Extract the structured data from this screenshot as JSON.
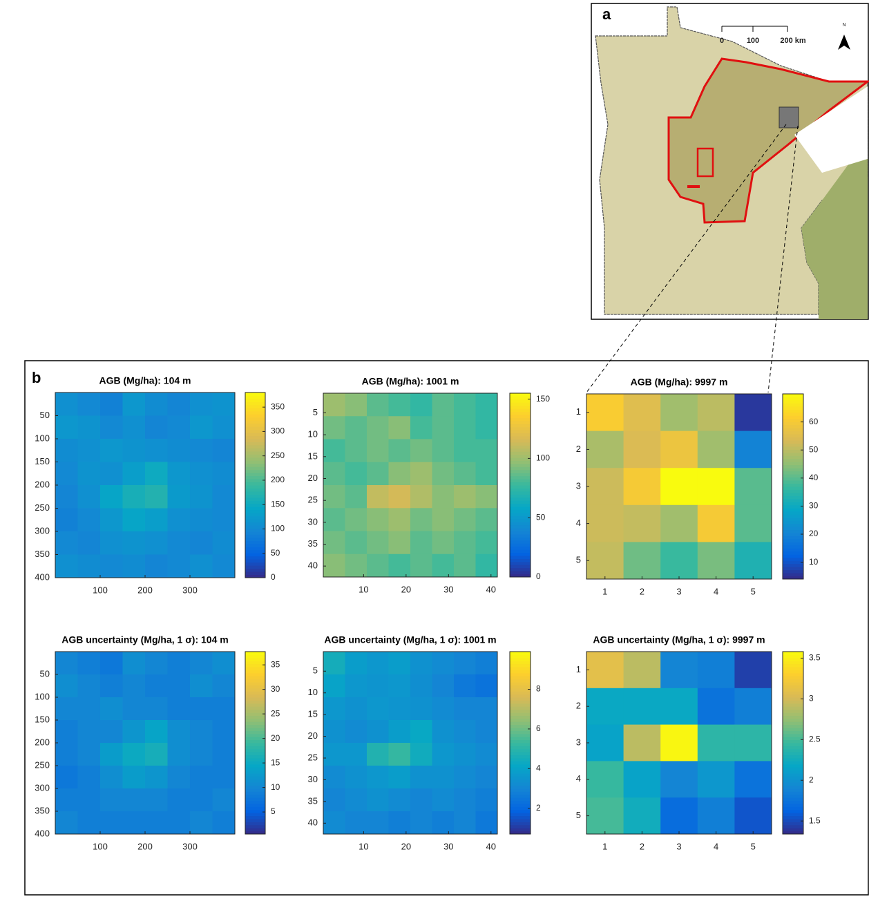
{
  "map": {
    "label": "a",
    "scale_ticks": [
      "0",
      "100",
      "200 km"
    ],
    "north": "N"
  },
  "panel_b_label": "b",
  "chart_data": [
    {
      "type": "heatmap",
      "title": "AGB (Mg/ha): 104 m",
      "colormap": "parula",
      "y_reversed": true,
      "xlim": [
        0,
        400
      ],
      "xticks": [
        100,
        200,
        300
      ],
      "ylim": [
        0,
        400
      ],
      "yticks": [
        50,
        100,
        150,
        200,
        250,
        300,
        350,
        400
      ],
      "clim": [
        0,
        380
      ],
      "cticks": [
        0,
        50,
        100,
        150,
        200,
        250,
        300,
        350
      ],
      "z": [
        [
          110,
          100,
          90,
          120,
          105,
          95,
          110,
          115
        ],
        [
          120,
          115,
          100,
          110,
          95,
          100,
          120,
          110
        ],
        [
          105,
          110,
          120,
          115,
          110,
          105,
          100,
          95
        ],
        [
          100,
          115,
          110,
          130,
          150,
          120,
          110,
          105
        ],
        [
          95,
          110,
          140,
          160,
          170,
          125,
          115,
          100
        ],
        [
          90,
          100,
          120,
          140,
          130,
          110,
          105,
          100
        ],
        [
          100,
          95,
          110,
          115,
          110,
          100,
          95,
          105
        ],
        [
          110,
          105,
          100,
          105,
          95,
          100,
          110,
          100
        ]
      ]
    },
    {
      "type": "heatmap",
      "title": "AGB (Mg/ha): 1001 m",
      "colormap": "parula",
      "y_reversed": true,
      "xlim": [
        0.5,
        41.5
      ],
      "xticks": [
        10,
        20,
        30,
        40
      ],
      "ylim": [
        0.5,
        42.5
      ],
      "yticks": [
        5,
        10,
        15,
        20,
        25,
        30,
        35,
        40
      ],
      "clim": [
        0,
        155
      ],
      "cticks": [
        0,
        50,
        100,
        150
      ],
      "z": [
        [
          100,
          95,
          85,
          80,
          75,
          85,
          80,
          75
        ],
        [
          90,
          85,
          90,
          95,
          80,
          85,
          80,
          75
        ],
        [
          80,
          85,
          90,
          85,
          90,
          85,
          80,
          80
        ],
        [
          85,
          80,
          85,
          95,
          100,
          90,
          85,
          80
        ],
        [
          90,
          85,
          110,
          115,
          105,
          95,
          100,
          95
        ],
        [
          85,
          90,
          95,
          100,
          90,
          95,
          90,
          85
        ],
        [
          90,
          85,
          90,
          95,
          85,
          90,
          85,
          80
        ],
        [
          95,
          90,
          85,
          80,
          85,
          80,
          85,
          75
        ]
      ]
    },
    {
      "type": "heatmap",
      "title": "AGB (Mg/ha): 9997 m",
      "colormap": "parula",
      "y_reversed": true,
      "xlim": [
        0.5,
        5.5
      ],
      "xticks": [
        1,
        2,
        3,
        4,
        5
      ],
      "ylim": [
        0.5,
        5.5
      ],
      "yticks": [
        1,
        2,
        3,
        4,
        5
      ],
      "clim": [
        4,
        70
      ],
      "cticks": [
        10,
        20,
        30,
        40,
        50,
        60
      ],
      "z": [
        [
          61,
          55,
          47,
          50,
          6
        ],
        [
          48,
          54,
          58,
          47,
          20
        ],
        [
          52,
          60,
          70,
          70,
          40
        ],
        [
          52,
          51,
          47,
          60,
          40
        ],
        [
          51,
          42,
          37,
          43,
          33
        ]
      ]
    },
    {
      "type": "heatmap",
      "title": "AGB uncertainty (Mg/ha, 1 σ): 104 m",
      "colormap": "parula",
      "y_reversed": true,
      "xlim": [
        0,
        400
      ],
      "xticks": [
        100,
        200,
        300
      ],
      "ylim": [
        0,
        400
      ],
      "yticks": [
        50,
        100,
        150,
        200,
        250,
        300,
        350,
        400
      ],
      "clim": [
        0.5,
        37.7
      ],
      "cticks": [
        5,
        10,
        15,
        20,
        25,
        30,
        35
      ],
      "z": [
        [
          10,
          9,
          8,
          11,
          10,
          9,
          10,
          11
        ],
        [
          11,
          10,
          9,
          10,
          9,
          9,
          11,
          10
        ],
        [
          10,
          10,
          11,
          10,
          10,
          9,
          9,
          9
        ],
        [
          9,
          10,
          10,
          12,
          14,
          11,
          10,
          9
        ],
        [
          9,
          10,
          13,
          15,
          16,
          11,
          10,
          9
        ],
        [
          8,
          9,
          11,
          13,
          12,
          10,
          9,
          9
        ],
        [
          9,
          9,
          10,
          10,
          10,
          9,
          9,
          10
        ],
        [
          10,
          9,
          9,
          9,
          9,
          9,
          10,
          9
        ]
      ]
    },
    {
      "type": "heatmap",
      "title": "AGB uncertainty (Mg/ha, 1 σ): 1001 m",
      "colormap": "parula",
      "y_reversed": true,
      "xlim": [
        0.5,
        41.5
      ],
      "xticks": [
        10,
        20,
        30,
        40
      ],
      "ylim": [
        0.5,
        42.5
      ],
      "yticks": [
        5,
        10,
        15,
        20,
        25,
        30,
        35,
        40
      ],
      "clim": [
        0.7,
        9.9
      ],
      "cticks": [
        2,
        4,
        6,
        8
      ],
      "z": [
        [
          4.5,
          3.8,
          3.6,
          3.8,
          3.4,
          3.2,
          3.0,
          2.8
        ],
        [
          4.0,
          3.6,
          3.5,
          3.6,
          3.3,
          3.0,
          2.6,
          2.4
        ],
        [
          3.6,
          3.4,
          3.6,
          3.5,
          3.4,
          3.2,
          3.0,
          3.0
        ],
        [
          3.4,
          3.2,
          3.4,
          3.8,
          4.2,
          3.4,
          3.2,
          3.0
        ],
        [
          3.6,
          3.6,
          4.8,
          5.2,
          4.4,
          3.6,
          3.4,
          3.2
        ],
        [
          3.2,
          3.4,
          3.6,
          3.8,
          3.4,
          3.4,
          3.2,
          3.0
        ],
        [
          3.0,
          3.2,
          3.4,
          3.2,
          3.0,
          3.2,
          3.0,
          2.8
        ],
        [
          3.2,
          3.0,
          3.0,
          2.8,
          3.0,
          2.8,
          3.0,
          2.6
        ]
      ]
    },
    {
      "type": "heatmap",
      "title": "AGB uncertainty (Mg/ha, 1 σ): 9997 m",
      "colormap": "parula",
      "y_reversed": true,
      "xlim": [
        0.5,
        5.5
      ],
      "xticks": [
        1,
        2,
        3,
        4,
        5
      ],
      "ylim": [
        0.5,
        5.5
      ],
      "yticks": [
        1,
        2,
        3,
        4,
        5
      ],
      "clim": [
        1.34,
        3.58
      ],
      "cticks": [
        1.5,
        2,
        2.5,
        3,
        3.5
      ],
      "z": [
        [
          3.1,
          2.9,
          1.9,
          1.85,
          1.45
        ],
        [
          2.2,
          2.2,
          2.2,
          1.75,
          1.85
        ],
        [
          2.15,
          2.9,
          3.55,
          2.4,
          2.4
        ],
        [
          2.45,
          2.15,
          1.9,
          2.05,
          1.75
        ],
        [
          2.5,
          2.25,
          1.7,
          1.85,
          1.55
        ]
      ]
    }
  ]
}
